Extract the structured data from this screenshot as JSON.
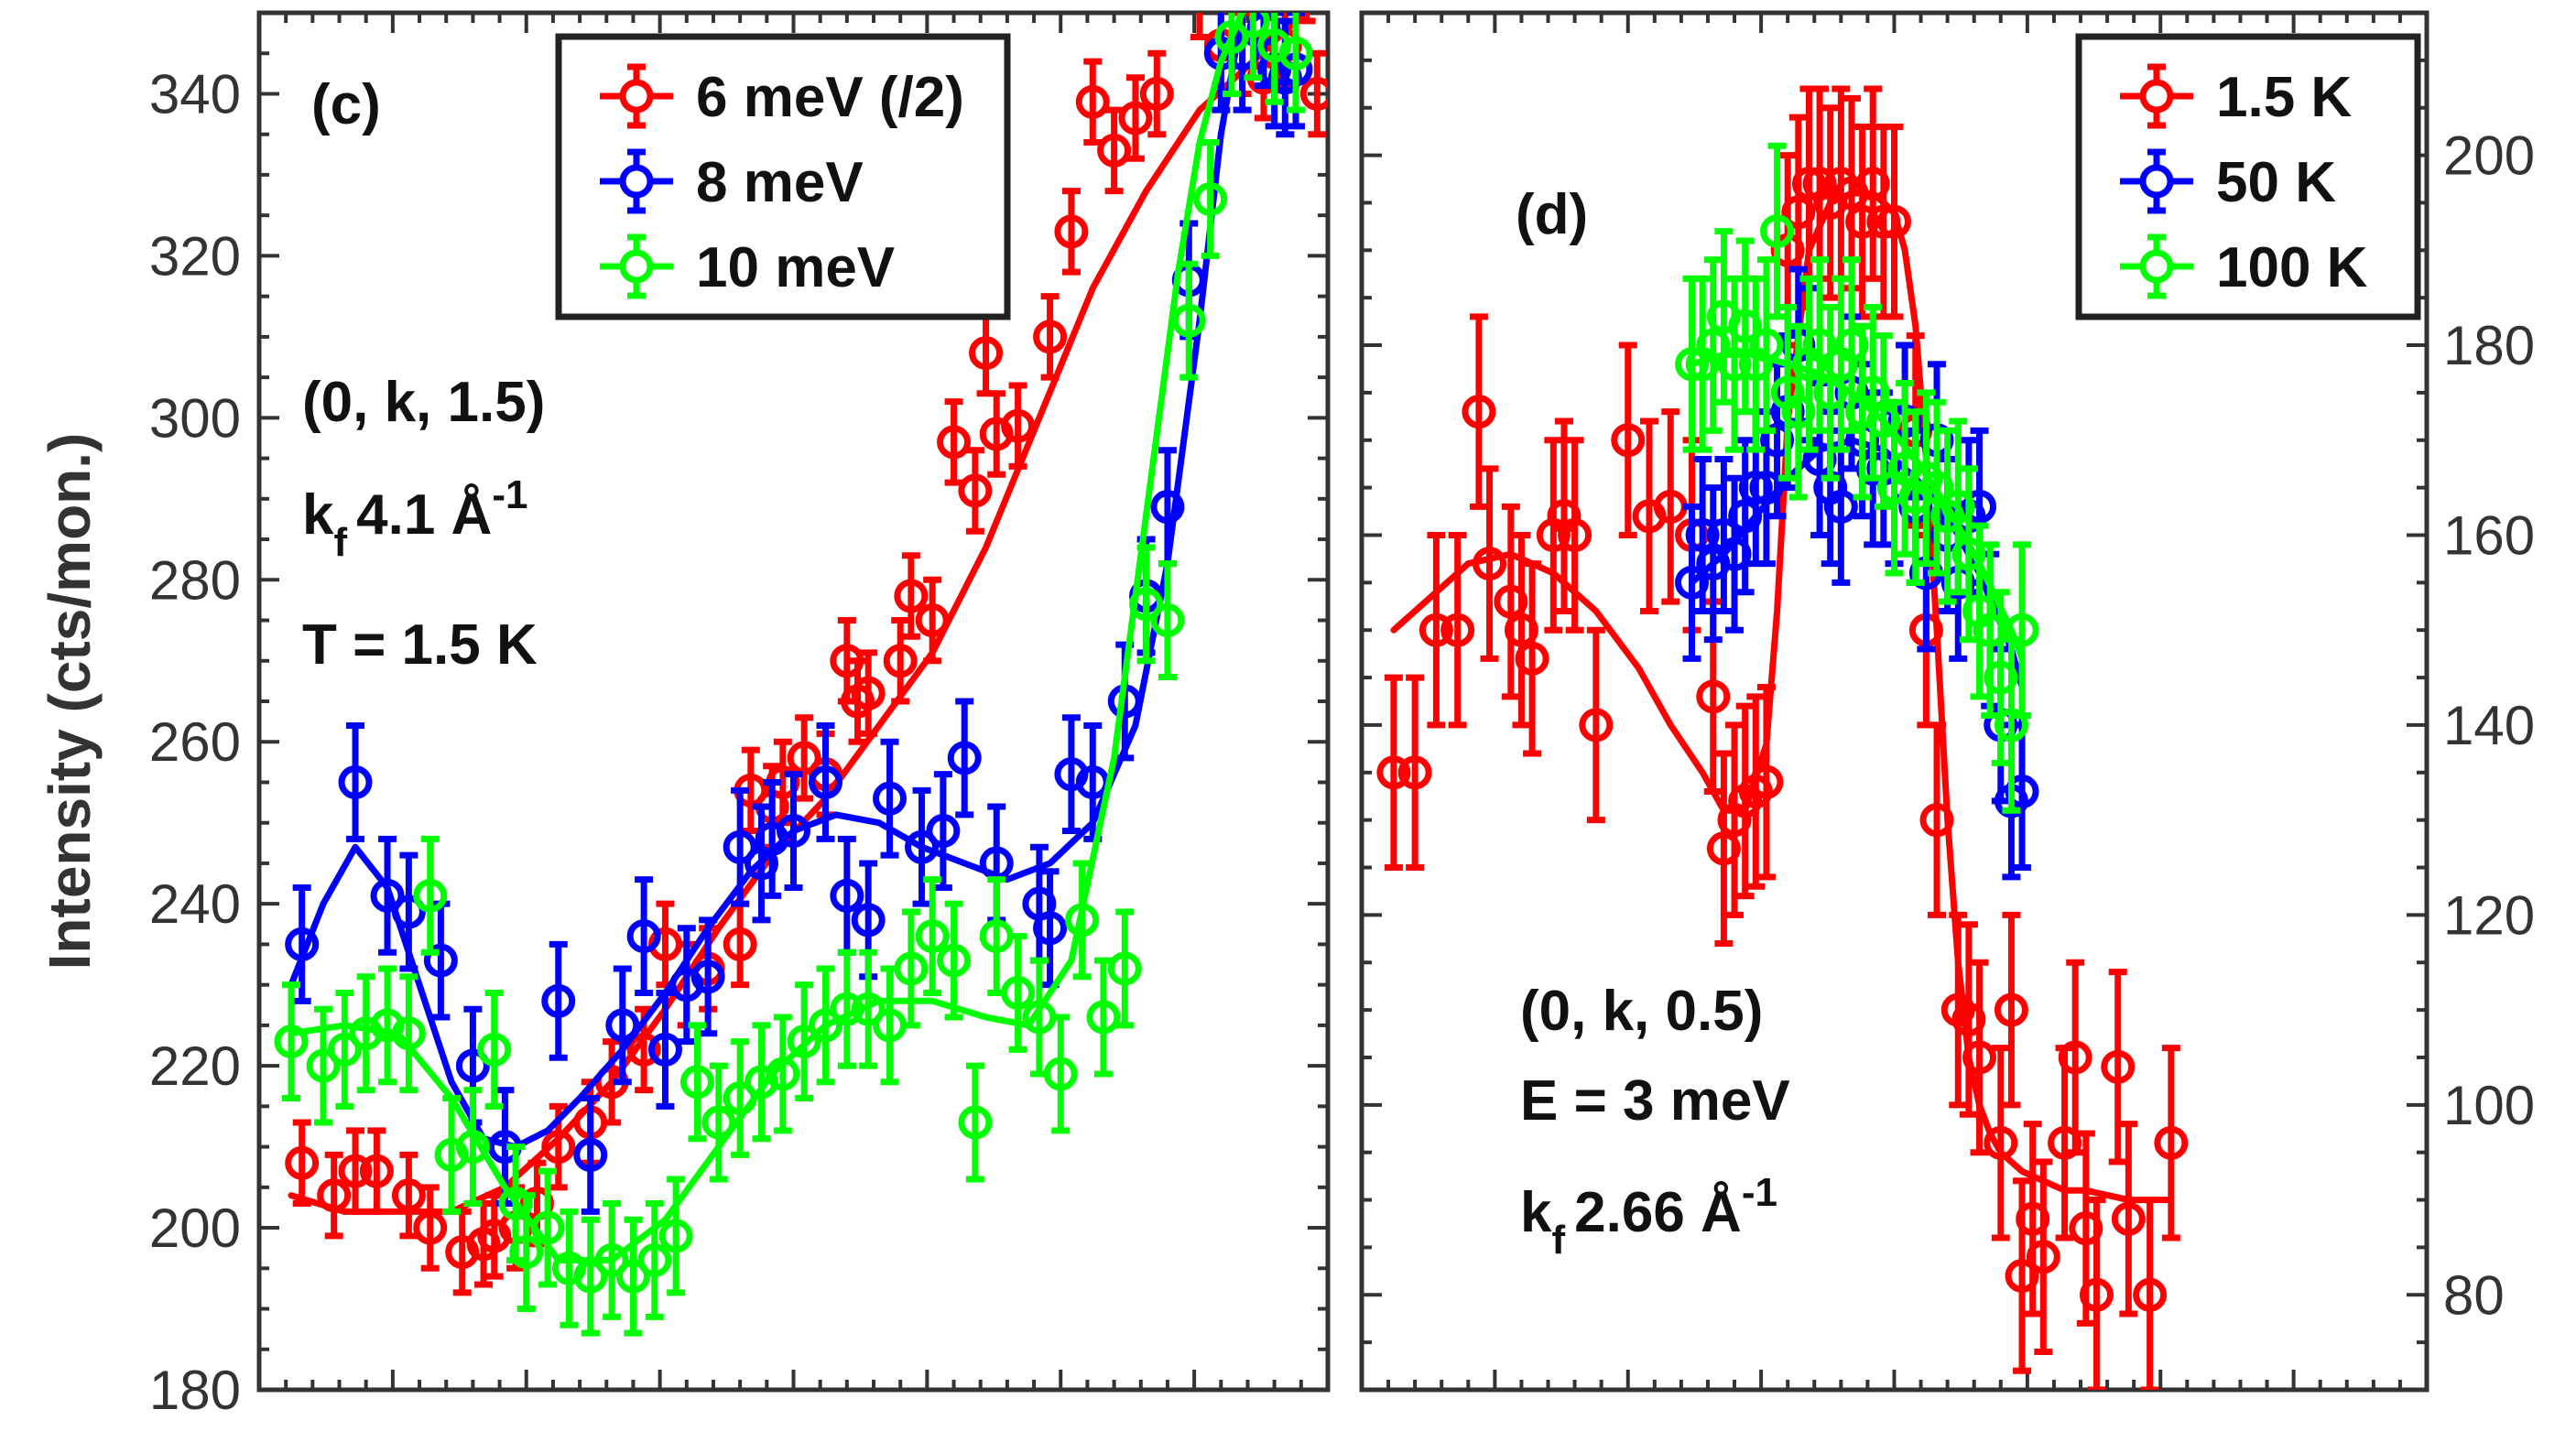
{
  "chart_data": [
    {
      "type": "scatter",
      "panel_label": "(c)",
      "title": "",
      "xlabel": "",
      "ylabel": "Intensity (cts/mon.)",
      "ylim": [
        180,
        350
      ],
      "yticks": [
        180,
        200,
        220,
        240,
        260,
        280,
        300,
        320,
        340
      ],
      "xlim": [
        0,
        100
      ],
      "annotations": [
        "(0, k, 1.5)",
        "4.1 Å",
        "T = 1.5 K"
      ],
      "kf_label": {
        "k": "k",
        "sub": "f",
        "value": "4.1 Å",
        "sup": "-1"
      },
      "legend": {
        "placement": "top-right",
        "entries": [
          "6 meV (/2)",
          "8 meV",
          "10 meV"
        ]
      },
      "series": [
        {
          "name": "6 meV (/2)",
          "color": "#ff0000",
          "x": [
            4,
            7,
            9,
            11,
            14,
            16,
            19,
            21,
            22,
            24,
            26,
            28,
            31,
            33,
            36,
            38,
            40,
            42,
            45,
            46,
            48,
            49,
            51,
            53,
            55,
            56,
            57,
            60,
            61,
            63,
            65,
            67,
            68,
            69,
            71,
            74,
            76,
            78,
            80,
            82,
            84,
            86,
            88,
            90,
            92,
            94,
            96,
            98,
            99
          ],
          "y": [
            208,
            204,
            207,
            207,
            204,
            200,
            197,
            198,
            199,
            200,
            203,
            210,
            213,
            218,
            222,
            235,
            230,
            232,
            235,
            254,
            252,
            255,
            258,
            256,
            270,
            265,
            266,
            270,
            278,
            275,
            297,
            291,
            308,
            298,
            299,
            310,
            323,
            339,
            333,
            337,
            340,
            358,
            352,
            346,
            345,
            342,
            346,
            354,
            340
          ],
          "err": [
            5,
            5,
            5,
            5,
            5,
            5,
            5,
            5,
            5,
            5,
            5,
            5,
            5,
            5,
            5,
            5,
            5,
            5,
            5,
            5,
            5,
            5,
            5,
            5,
            5,
            5,
            5,
            5,
            5,
            5,
            5,
            5,
            5,
            5,
            5,
            5,
            5,
            5,
            5,
            5,
            5,
            5,
            5,
            5,
            5,
            5,
            5,
            5,
            5
          ],
          "fit_x": [
            3,
            8,
            13,
            18,
            23,
            28,
            33,
            38,
            43,
            48,
            53,
            58,
            63,
            68,
            73,
            78,
            83,
            88,
            93,
            97,
            99
          ],
          "fit_y": [
            204,
            202,
            202,
            202,
            205,
            211,
            218,
            227,
            237,
            246,
            253,
            262,
            271,
            284,
            300,
            316,
            328,
            338,
            344,
            349,
            352
          ]
        },
        {
          "name": "8 meV",
          "color": "#0000ff",
          "x": [
            4,
            9,
            12,
            14,
            17,
            20,
            23,
            28,
            31,
            34,
            36,
            38,
            40,
            42,
            45,
            47,
            48,
            50,
            53,
            55,
            57,
            59,
            62,
            64,
            66,
            69,
            73,
            74,
            76,
            78,
            81,
            83,
            85,
            87,
            90,
            92,
            94,
            95,
            96,
            97
          ],
          "y": [
            235,
            255,
            241,
            239,
            233,
            220,
            210,
            228,
            209,
            225,
            236,
            222,
            230,
            231,
            247,
            245,
            248,
            249,
            255,
            241,
            238,
            253,
            247,
            249,
            258,
            245,
            240,
            237,
            256,
            255,
            265,
            278,
            289,
            317,
            345,
            345,
            348,
            343,
            342,
            343
          ],
          "err": [
            7,
            7,
            7,
            7,
            7,
            7,
            7,
            7,
            7,
            7,
            7,
            7,
            7,
            7,
            7,
            7,
            7,
            7,
            7,
            7,
            7,
            7,
            7,
            7,
            7,
            7,
            7,
            7,
            7,
            7,
            7,
            7,
            7,
            7,
            7,
            7,
            7,
            7,
            7,
            7
          ],
          "fit_x": [
            3,
            6,
            9,
            12,
            15,
            18,
            21,
            24,
            27,
            30,
            34,
            38,
            42,
            46,
            50,
            54,
            58,
            62,
            66,
            70,
            74,
            78,
            82,
            85,
            88,
            90,
            92
          ],
          "fit_y": [
            230,
            240,
            247,
            242,
            230,
            218,
            211,
            210,
            212,
            216,
            222,
            229,
            237,
            244,
            249,
            251,
            250,
            247,
            245,
            243,
            245,
            250,
            262,
            282,
            312,
            335,
            350
          ]
        },
        {
          "name": "10 meV",
          "color": "#00ff00",
          "x": [
            3,
            6,
            8,
            10,
            12,
            14,
            16,
            18,
            20,
            22,
            24,
            25,
            27,
            29,
            31,
            33,
            35,
            37,
            39,
            41,
            43,
            45,
            47,
            49,
            51,
            53,
            55,
            57,
            59,
            61,
            63,
            65,
            67,
            69,
            71,
            73,
            75,
            77,
            79,
            81,
            83,
            85,
            87,
            89,
            91,
            93,
            95,
            97
          ],
          "y": [
            223,
            220,
            222,
            224,
            225,
            224,
            241,
            209,
            210,
            222,
            203,
            197,
            200,
            195,
            194,
            196,
            194,
            196,
            199,
            218,
            213,
            216,
            218,
            219,
            223,
            225,
            227,
            227,
            225,
            232,
            236,
            233,
            213,
            236,
            229,
            226,
            219,
            238,
            226,
            232,
            277,
            275,
            312,
            327,
            347,
            349,
            346,
            345
          ],
          "err": [
            7,
            7,
            7,
            7,
            7,
            7,
            7,
            7,
            7,
            7,
            7,
            7,
            7,
            7,
            7,
            7,
            7,
            7,
            7,
            7,
            7,
            7,
            7,
            7,
            7,
            7,
            7,
            7,
            7,
            7,
            7,
            7,
            7,
            7,
            7,
            7,
            7,
            7,
            7,
            7,
            7,
            7,
            7,
            7,
            7,
            7,
            7,
            7
          ],
          "fit_x": [
            3,
            8,
            13,
            18,
            23,
            28,
            33,
            38,
            43,
            48,
            53,
            58,
            63,
            68,
            72,
            76,
            80,
            83,
            86,
            88,
            90,
            92,
            94
          ],
          "fit_y": [
            224,
            225,
            224,
            216,
            205,
            196,
            196,
            201,
            210,
            219,
            225,
            228,
            228,
            226,
            225,
            233,
            258,
            288,
            318,
            334,
            344,
            350,
            354
          ]
        }
      ]
    },
    {
      "type": "scatter",
      "panel_label": "(d)",
      "title": "",
      "xlabel": "",
      "ylabel": "",
      "y_axis_side": "right",
      "ylim": [
        70,
        215
      ],
      "yticks": [
        80,
        100,
        120,
        140,
        160,
        180,
        200
      ],
      "xlim": [
        0,
        100
      ],
      "annotations": [
        "(0, k, 0.5)",
        "E = 3 meV",
        "2.66 Å"
      ],
      "kf_label": {
        "k": "k",
        "sub": "f",
        "value": "2.66 Å",
        "sup": "-1"
      },
      "legend": {
        "placement": "top-right",
        "entries": [
          "1.5 K",
          "50 K",
          "100 K"
        ]
      },
      "series": [
        {
          "name": "1.5 K",
          "color": "#ff0000",
          "x": [
            3,
            5,
            7,
            9,
            11,
            12,
            14,
            15,
            16,
            18,
            19,
            20,
            22,
            25,
            27,
            29,
            31,
            33,
            34,
            35,
            36,
            37,
            38,
            40,
            41,
            42,
            43,
            44,
            45,
            46,
            47,
            48,
            49,
            50,
            52,
            53,
            54,
            56,
            57,
            58,
            60,
            61,
            62,
            63,
            64,
            66,
            67,
            68,
            69,
            71,
            72,
            74,
            76
          ],
          "y": [
            135,
            135,
            150,
            150,
            173,
            157,
            153,
            150,
            147,
            160,
            162,
            160,
            140,
            170,
            162,
            163,
            160,
            143,
            127,
            130,
            132,
            133,
            134,
            190,
            194,
            197,
            197,
            195,
            197,
            196,
            193,
            197,
            193,
            193,
            171,
            150,
            130,
            110,
            109,
            105,
            96,
            110,
            82,
            88,
            84,
            96,
            105,
            87,
            80,
            104,
            88,
            80,
            96
          ],
          "err": [
            10,
            10,
            10,
            10,
            10,
            10,
            10,
            10,
            10,
            10,
            10,
            10,
            10,
            10,
            10,
            10,
            10,
            10,
            10,
            10,
            10,
            10,
            10,
            10,
            10,
            10,
            10,
            10,
            10,
            10,
            10,
            10,
            10,
            10,
            10,
            10,
            10,
            10,
            10,
            10,
            10,
            10,
            10,
            10,
            10,
            10,
            10,
            10,
            10,
            10,
            10,
            10,
            10
          ],
          "fit_x": [
            3,
            6,
            10,
            14,
            18,
            22,
            26,
            29,
            32,
            34,
            36,
            38,
            39,
            40,
            42,
            44,
            46,
            48,
            50,
            51,
            52,
            53,
            54,
            55,
            56,
            57,
            58,
            59,
            60,
            62,
            64,
            66,
            68,
            72,
            76
          ],
          "fit_y": [
            150,
            153,
            157,
            158,
            156,
            152,
            146,
            140,
            135,
            131,
            131,
            138,
            152,
            172,
            190,
            195,
            196,
            196,
            194,
            190,
            182,
            168,
            150,
            130,
            115,
            105,
            100,
            97,
            95,
            93,
            92,
            91,
            91,
            90,
            90
          ]
        },
        {
          "name": "50 K",
          "color": "#0000ff",
          "x": [
            31,
            32,
            33,
            34,
            35,
            36,
            37,
            38,
            39,
            40,
            41,
            42,
            43,
            44,
            45,
            46,
            47,
            48,
            49,
            50,
            51,
            52,
            53,
            54,
            55,
            56,
            57,
            58,
            59,
            60,
            61,
            62
          ],
          "y": [
            155,
            160,
            157,
            160,
            158,
            162,
            165,
            165,
            170,
            173,
            180,
            178,
            168,
            165,
            163,
            175,
            170,
            167,
            167,
            165,
            172,
            163,
            156,
            170,
            160,
            155,
            162,
            163,
            150,
            140,
            132,
            133
          ],
          "err": [
            8,
            8,
            8,
            8,
            8,
            8,
            8,
            8,
            8,
            8,
            8,
            8,
            8,
            8,
            8,
            8,
            8,
            8,
            8,
            8,
            8,
            8,
            8,
            8,
            8,
            8,
            8,
            8,
            8,
            8,
            8,
            8
          ],
          "fit_x": [
            31,
            34,
            37,
            40,
            43,
            46,
            49,
            52,
            55,
            58,
            61,
            62
          ],
          "fit_y": [
            155,
            158,
            162,
            166,
            169,
            170,
            169,
            166,
            162,
            156,
            148,
            144
          ]
        },
        {
          "name": "100 K",
          "color": "#00ff00",
          "x": [
            31,
            32,
            33,
            34,
            35,
            36,
            37,
            38,
            39,
            40,
            41,
            42,
            43,
            44,
            45,
            46,
            47,
            48,
            49,
            50,
            51,
            52,
            53,
            54,
            55,
            56,
            57,
            58,
            59,
            60,
            61,
            62
          ],
          "y": [
            178,
            178,
            180,
            183,
            178,
            182,
            178,
            180,
            192,
            175,
            173,
            178,
            180,
            175,
            178,
            180,
            173,
            175,
            172,
            165,
            167,
            164,
            166,
            165,
            162,
            163,
            158,
            152,
            150,
            145,
            140,
            150
          ],
          "err": [
            9,
            9,
            9,
            9,
            9,
            9,
            9,
            9,
            9,
            9,
            9,
            9,
            9,
            9,
            9,
            9,
            9,
            9,
            9,
            9,
            9,
            9,
            9,
            9,
            9,
            9,
            9,
            9,
            9,
            9,
            9,
            9
          ],
          "fit_x": [
            31,
            34,
            37,
            40,
            43,
            46,
            49,
            52,
            55,
            58,
            61,
            62
          ],
          "fit_y": [
            178,
            179,
            179,
            178,
            177,
            175,
            172,
            168,
            163,
            157,
            150,
            147
          ]
        }
      ]
    }
  ]
}
